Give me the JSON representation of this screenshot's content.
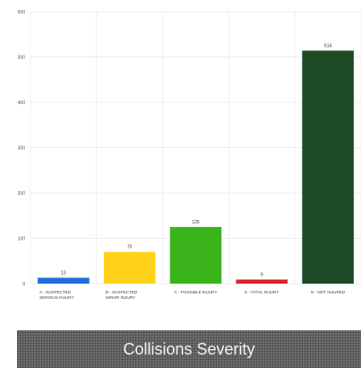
{
  "chart_data": {
    "type": "bar",
    "categories": [
      [
        "A - SUSPECTED",
        "SERIOUS INJURY"
      ],
      [
        "B - SUSPECTED",
        "MINOR INJURY"
      ],
      [
        "C - POSSIBLE INJURY"
      ],
      [
        "K - FATAL INJURY"
      ],
      [
        "N - NOT INJURED"
      ]
    ],
    "values": [
      13,
      70,
      125,
      9,
      514
    ],
    "colors": [
      "#1f6fe0",
      "#ffd219",
      "#3bb31b",
      "#d9242b",
      "#1d4a25"
    ],
    "ylim": [
      0,
      600
    ],
    "yticks": [
      0,
      100,
      200,
      300,
      400,
      500,
      600
    ],
    "grid": true,
    "legend": "none"
  },
  "banner": {
    "title": "Collisions Severity"
  }
}
